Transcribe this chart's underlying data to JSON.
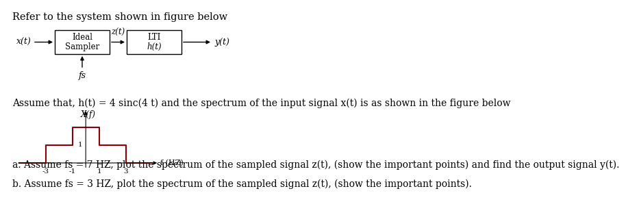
{
  "bg_color": "#ffffff",
  "title_text": "Refer to the system shown in figure below",
  "title_fontsize": 10.5,
  "block_diagram": {
    "x_t_label": "x(t)",
    "box1_label1": "Ideal",
    "box1_label2": "Sampler",
    "zt_label": "z(t)",
    "box2_label1": "LTI",
    "box2_label2": "h(t)",
    "y_t_label": "y(t)",
    "fs_label": "fs"
  },
  "assume_text": "Assume that, h(t) = 4 sinc(4 t) and the spectrum of the input signal x(t) is as shown in the figure below",
  "assume_fontsize": 10,
  "spectrum": {
    "x_label": "X(f)",
    "f_label": "f (HZ)",
    "x_values": [
      -5,
      -3,
      -3,
      -1,
      -1,
      1,
      1,
      3,
      3,
      5
    ],
    "y_values": [
      0,
      0,
      1,
      1,
      2,
      2,
      1,
      1,
      0,
      0
    ],
    "color": "#8B0000",
    "linewidth": 1.5,
    "xticks": [
      -3,
      -1,
      1,
      3
    ],
    "ytick_1_label": "1",
    "xlim": [
      -5.5,
      6.0
    ],
    "ylim": [
      -0.5,
      3.2
    ]
  },
  "question_a": "a. Assume fs = 7 HZ, plot the spectrum of the sampled signal z(t), (show the important points) and find the output signal y(t).",
  "question_b": "b. Assume fs = 3 HZ, plot the spectrum of the sampled signal z(t), (show the important points).",
  "question_fontsize": 10
}
